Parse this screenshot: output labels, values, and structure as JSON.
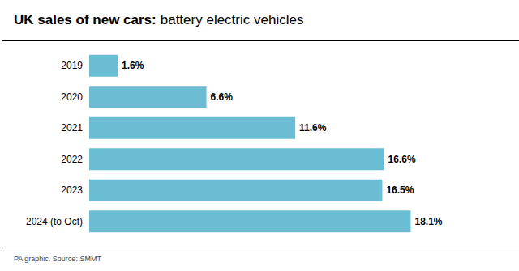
{
  "chart_data": {
    "type": "bar",
    "orientation": "horizontal",
    "title": "UK sales of new cars:",
    "subtitle": "battery electric vehicles",
    "categories": [
      "2019",
      "2020",
      "2021",
      "2022",
      "2023",
      "2024 (to Oct)"
    ],
    "values": [
      1.6,
      6.6,
      11.6,
      16.6,
      16.5,
      18.1
    ],
    "value_labels": [
      "1.6%",
      "6.6%",
      "11.6%",
      "16.6%",
      "16.5%",
      "18.1%"
    ],
    "data_labels": true,
    "color": "#6bbdd4",
    "xlim": [
      0,
      21
    ],
    "tick_labels": "y",
    "grid": false,
    "annotations": [
      "PA graphic. Source: SMMT"
    ]
  }
}
